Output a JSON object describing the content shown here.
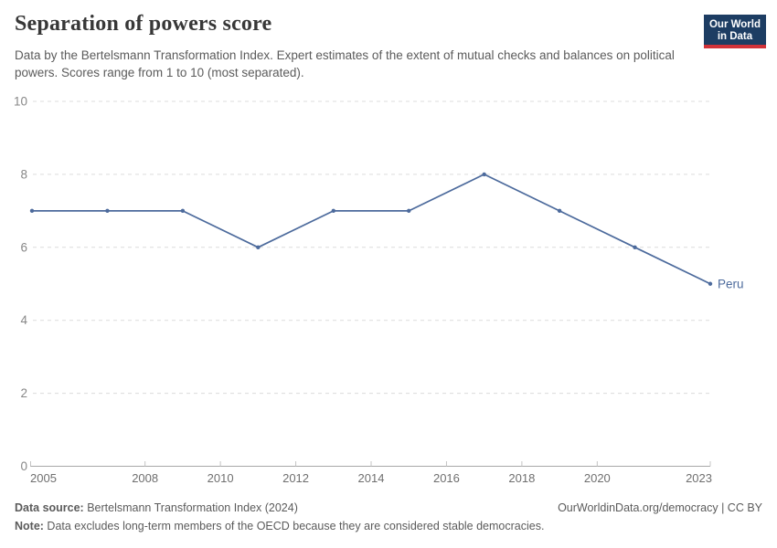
{
  "header": {
    "title": "Separation of powers score",
    "subtitle": "Data by the Bertelsmann Transformation Index. Expert estimates of the extent of mutual checks and balances on political powers. Scores range from 1 to 10 (most separated).",
    "logo": {
      "line1": "Our World",
      "line2": "in Data",
      "bg_color": "#1d3d63",
      "accent_color": "#d13239"
    }
  },
  "chart_data": {
    "type": "line",
    "title": "Separation of powers score",
    "series": [
      {
        "name": "Peru",
        "color": "#4c6a9c",
        "x": [
          2005,
          2007,
          2009,
          2011,
          2013,
          2015,
          2017,
          2019,
          2021,
          2023
        ],
        "values": [
          7,
          7,
          7,
          6,
          7,
          7,
          8,
          7,
          6,
          5
        ]
      }
    ],
    "xlabel": "",
    "ylabel": "",
    "xlim": [
      2005,
      2023
    ],
    "ylim": [
      0,
      10
    ],
    "x_ticks": [
      2005,
      2008,
      2010,
      2012,
      2014,
      2016,
      2018,
      2020,
      2023
    ],
    "y_ticks": [
      0,
      2,
      4,
      6,
      8,
      10
    ],
    "grid": "horizontal dashed",
    "legend_position": "end-of-line label",
    "end_label": "Peru"
  },
  "footer": {
    "data_source_label": "Data source:",
    "data_source_text": " Bertelsmann Transformation Index (2024)",
    "credit": "OurWorldinData.org/democracy | CC BY",
    "note_label": "Note:",
    "note_text": " Data excludes long-term members of the OECD because they are considered stable democracies."
  }
}
